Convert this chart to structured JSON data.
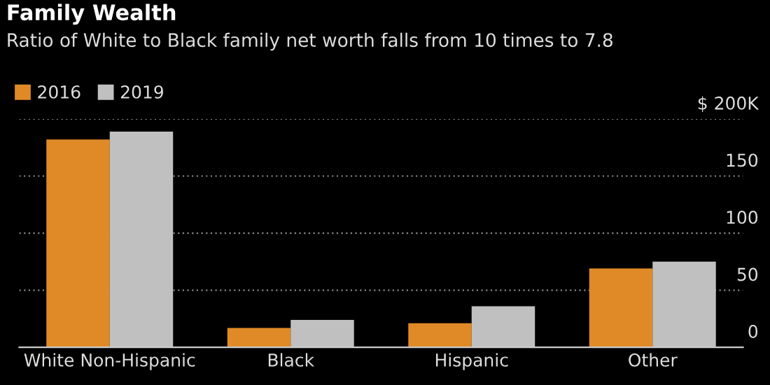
{
  "chart_data": {
    "type": "bar",
    "title": "Family Wealth",
    "subtitle": "Ratio of White to Black family net worth falls from 10 times to 7.8",
    "categories": [
      "White Non-Hispanic",
      "Black",
      "Hispanic",
      "Other"
    ],
    "series": [
      {
        "name": "2016",
        "color": "#e08a27",
        "values": [
          182,
          17,
          21,
          69
        ]
      },
      {
        "name": "2019",
        "color": "#c0c0c0",
        "values": [
          189,
          24,
          36,
          75
        ]
      }
    ],
    "ylim": [
      0,
      200
    ],
    "yticks": [
      0,
      50,
      100,
      150,
      {
        "value": 200,
        "label": "$ 200K"
      }
    ],
    "grid": "y",
    "legend": "top left"
  }
}
